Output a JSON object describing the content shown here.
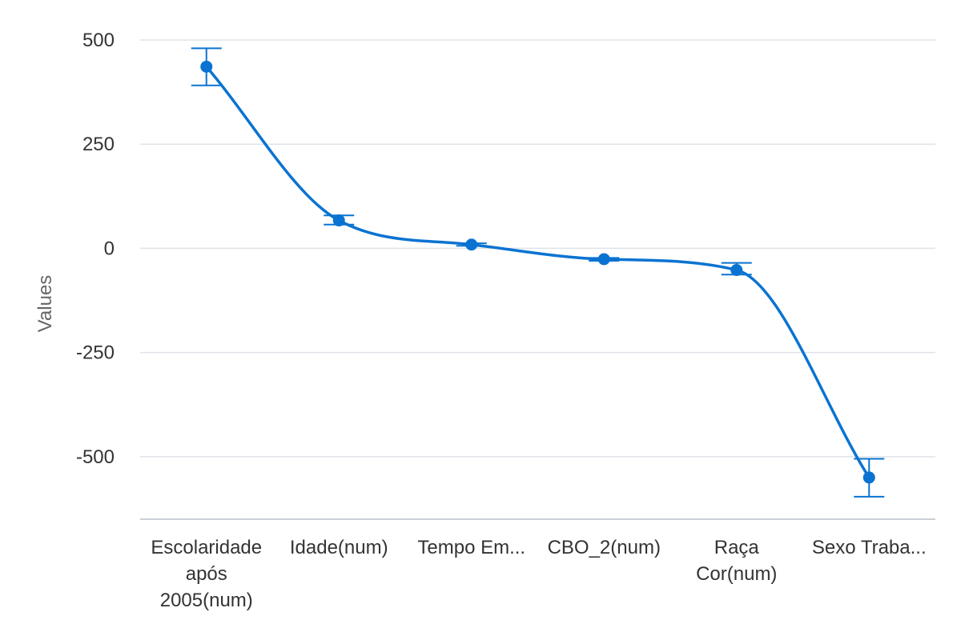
{
  "chart_data": {
    "type": "line",
    "title": "",
    "xlabel": "",
    "ylabel": "Values",
    "ylim": [
      -650,
      500
    ],
    "yticks": [
      500,
      250,
      0,
      -250,
      -500
    ],
    "ytick_labels": [
      "500",
      "250",
      "0",
      "-250",
      "-500"
    ],
    "categories": [
      [
        "Escolaridade",
        "após",
        "2005(num)"
      ],
      [
        "Idade(num)"
      ],
      [
        "Tempo Em..."
      ],
      [
        "CBO_2(num)"
      ],
      [
        "Raça",
        "Cor(num)"
      ],
      [
        "Sexo Traba..."
      ]
    ],
    "values": [
      436,
      67,
      9,
      -26,
      -52,
      -550
    ],
    "error_low": [
      391,
      57,
      6,
      -30,
      -63,
      -596
    ],
    "error_high": [
      480,
      79,
      12,
      -23,
      -35,
      -505
    ],
    "grid": true,
    "color": "#0a73d1"
  }
}
